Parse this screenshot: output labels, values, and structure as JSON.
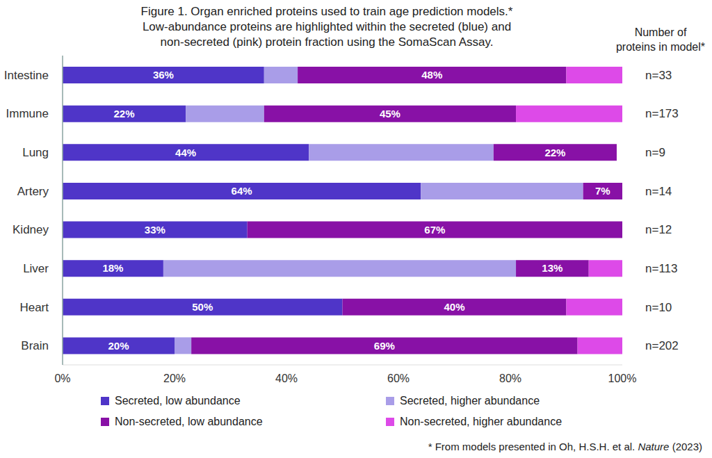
{
  "chart_data": {
    "type": "bar",
    "orientation": "horizontal",
    "stacked": true,
    "grid": false,
    "legend": "bottom",
    "title": "Figure 1. Organ enriched proteins used to train age prediction models.*",
    "subtitle": [
      "Low-abundance proteins are highlighted within the secreted (blue) and",
      "non-secreted (pink) protein fraction using the SomaScan Assay."
    ],
    "categories": [
      "Intestine",
      "Immune",
      "Lung",
      "Artery",
      "Kidney",
      "Liver",
      "Heart",
      "Brain"
    ],
    "series": [
      {
        "name": "Secreted, low abundance",
        "color": "#4f35c8",
        "values": [
          36,
          22,
          44,
          64,
          33,
          18,
          50,
          20
        ],
        "data_labels": true,
        "value_labels": [
          "36%",
          "22%",
          "44%",
          "64%",
          "33%",
          "18%",
          "50%",
          "20%"
        ]
      },
      {
        "name": "Secreted, higher abundance",
        "color": "#a99de8",
        "values": [
          6,
          14,
          33,
          29,
          0,
          63,
          0,
          3
        ]
      },
      {
        "name": "Non-secreted, low abundance",
        "color": "#8811a6",
        "values": [
          48,
          45,
          22,
          7,
          67,
          13,
          40,
          69
        ],
        "data_labels": true,
        "value_labels": [
          "48%",
          "45%",
          "22%",
          "7%",
          "67%",
          "13%",
          "40%",
          "69%"
        ]
      },
      {
        "name": "Non-secreted, higher abundance",
        "color": "#dd4ae8",
        "values": [
          10,
          19,
          0,
          0,
          0,
          6,
          10,
          8
        ]
      }
    ],
    "xlim": [
      0,
      100
    ],
    "xticks": [
      {
        "value": 0,
        "label": "0%"
      },
      {
        "value": 20,
        "label": "20%"
      },
      {
        "value": 40,
        "label": "40%"
      },
      {
        "value": 60,
        "label": "60%"
      },
      {
        "value": 80,
        "label": "80%"
      },
      {
        "value": 100,
        "label": "100%"
      }
    ],
    "right_axis_title": [
      "Number of",
      "proteins in model*"
    ],
    "right_labels": [
      "n=33",
      "n=173",
      "n=9",
      "n=14",
      "n=12",
      "n=113",
      "n=10",
      "n=202"
    ],
    "footnote": "* From models presented in Oh, H.S.H. et al. Nature (2023)",
    "footnote_italic": "Nature"
  }
}
